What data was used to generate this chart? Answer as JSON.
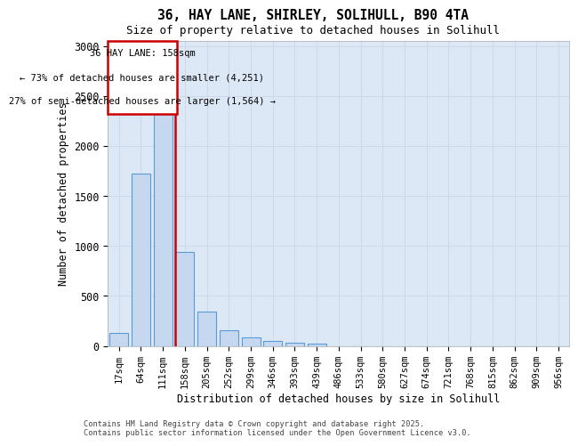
{
  "title_line1": "36, HAY LANE, SHIRLEY, SOLIHULL, B90 4TA",
  "title_line2": "Size of property relative to detached houses in Solihull",
  "xlabel": "Distribution of detached houses by size in Solihull",
  "ylabel": "Number of detached properties",
  "categories": [
    "17sqm",
    "64sqm",
    "111sqm",
    "158sqm",
    "205sqm",
    "252sqm",
    "299sqm",
    "346sqm",
    "393sqm",
    "439sqm",
    "486sqm",
    "533sqm",
    "580sqm",
    "627sqm",
    "674sqm",
    "721sqm",
    "768sqm",
    "815sqm",
    "862sqm",
    "909sqm",
    "956sqm"
  ],
  "values": [
    130,
    1720,
    2390,
    940,
    340,
    155,
    85,
    45,
    35,
    20,
    0,
    0,
    0,
    0,
    0,
    0,
    0,
    0,
    0,
    0,
    0
  ],
  "bar_color": "#c5d8f0",
  "bar_edge_color": "#5b9bd5",
  "vline_color": "#cc0000",
  "annotation_title": "36 HAY LANE: 158sqm",
  "annotation_line2": "← 73% of detached houses are smaller (4,251)",
  "annotation_line3": "27% of semi-detached houses are larger (1,564) →",
  "annotation_box_edgecolor": "#cc0000",
  "ylim": [
    0,
    3050
  ],
  "yticks": [
    0,
    500,
    1000,
    1500,
    2000,
    2500,
    3000
  ],
  "grid_color": "#ccd9e8",
  "background_color": "#dce8f5",
  "footer_line1": "Contains HM Land Registry data © Crown copyright and database right 2025.",
  "footer_line2": "Contains public sector information licensed under the Open Government Licence v3.0."
}
